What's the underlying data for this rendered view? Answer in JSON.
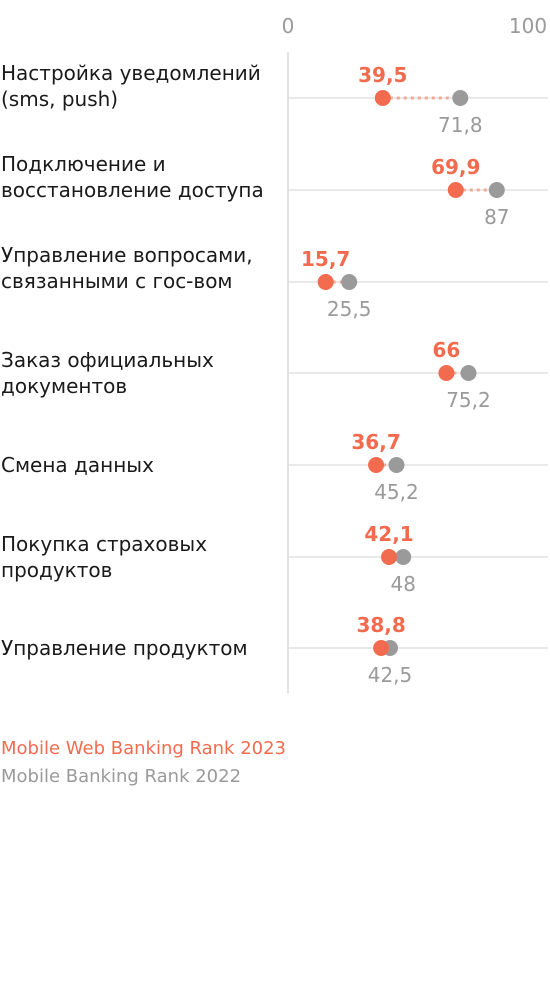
{
  "chart_data": {
    "type": "dot",
    "xlim": [
      0,
      100
    ],
    "ticks": [
      "0",
      "100"
    ],
    "colors": {
      "2023": "#f26b4f",
      "2022": "#9a9a9a"
    },
    "categories": [
      "Настройка уведомлений (sms, push)",
      "Подключение и восстановление доступа",
      "Управление вопросами, связанными с гос-вом",
      "Заказ официальных документов",
      "Смена данных",
      "Покупка страховых продуктов",
      "Управление продуктом"
    ],
    "series": [
      {
        "name": "Mobile Web Banking Rank 2023",
        "values": [
          39.5,
          69.9,
          15.7,
          66,
          36.7,
          42.1,
          38.8
        ],
        "labels": [
          "39,5",
          "69,9",
          "15,7",
          "66",
          "36,7",
          "42,1",
          "38,8"
        ]
      },
      {
        "name": "Mobile Banking Rank 2022",
        "values": [
          71.8,
          87,
          25.5,
          75.2,
          45.2,
          48,
          42.5
        ],
        "labels": [
          "71,8",
          "87",
          "25,5",
          "75,2",
          "45,2",
          "48",
          "42,5"
        ]
      }
    ]
  }
}
